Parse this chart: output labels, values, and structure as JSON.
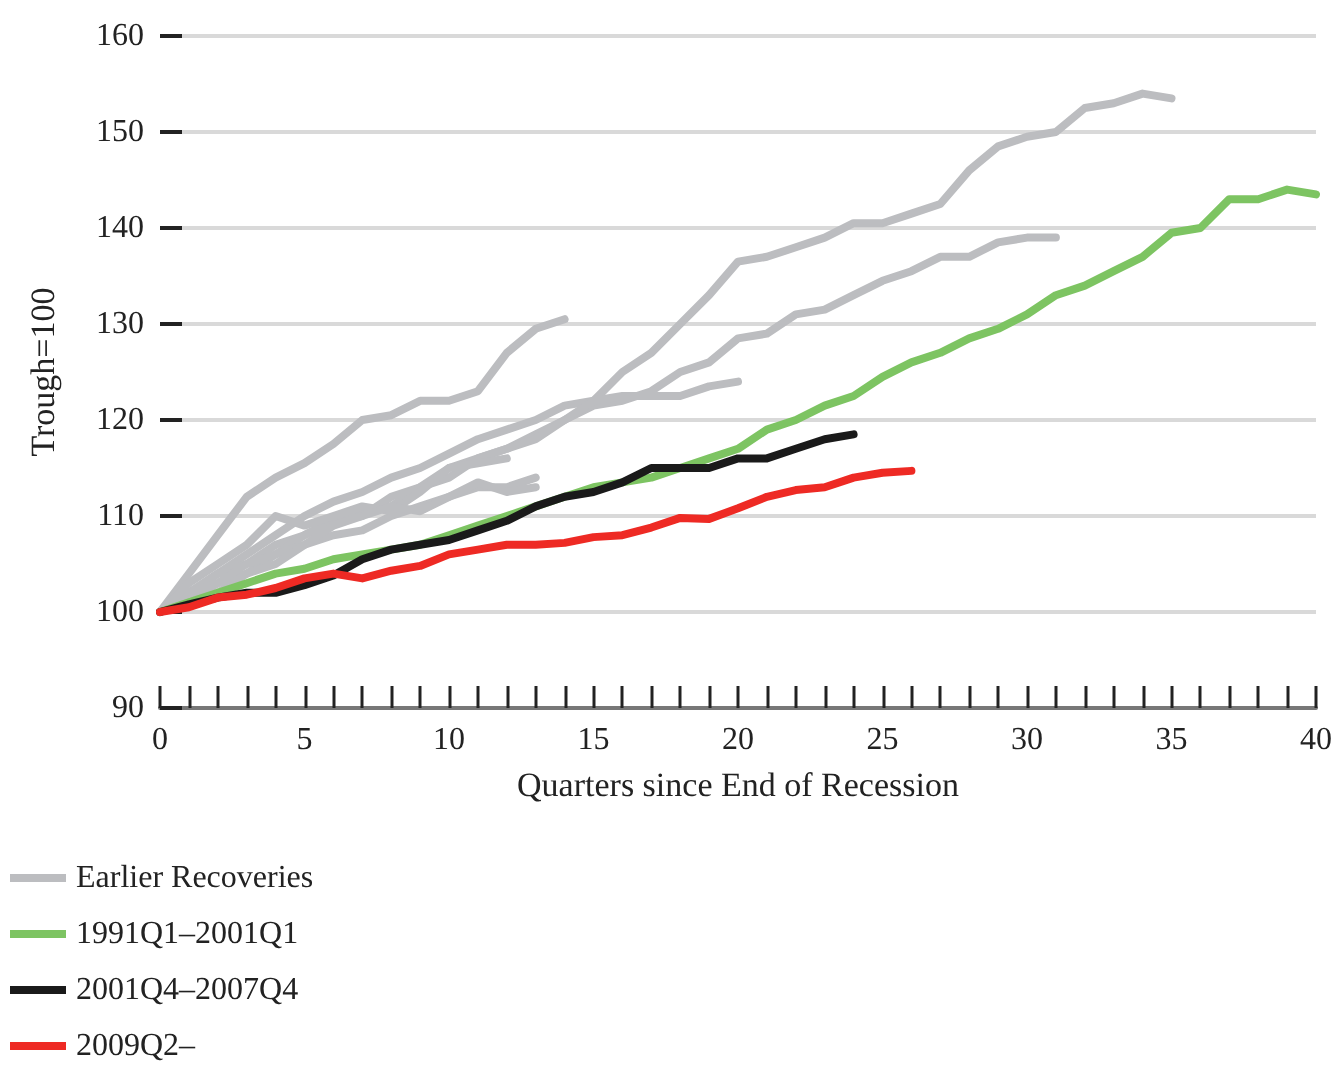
{
  "chart_data": {
    "type": "line",
    "xlabel": "Quarters since End of Recession",
    "ylabel": "Trough=100",
    "xlim": [
      0,
      40
    ],
    "ylim": [
      90,
      160
    ],
    "xticks": [
      0,
      {
        "value": 1,
        "label": null
      },
      {
        "value": 2,
        "label": null
      },
      {
        "value": 3,
        "label": null
      },
      {
        "value": 4,
        "label": null
      },
      5,
      {
        "value": 6,
        "label": null
      },
      {
        "value": 7,
        "label": null
      },
      {
        "value": 8,
        "label": null
      },
      {
        "value": 9,
        "label": null
      },
      10,
      {
        "value": 11,
        "label": null
      },
      {
        "value": 12,
        "label": null
      },
      {
        "value": 13,
        "label": null
      },
      {
        "value": 14,
        "label": null
      },
      15,
      {
        "value": 16,
        "label": null
      },
      {
        "value": 17,
        "label": null
      },
      {
        "value": 18,
        "label": null
      },
      {
        "value": 19,
        "label": null
      },
      20,
      {
        "value": 21,
        "label": null
      },
      {
        "value": 22,
        "label": null
      },
      {
        "value": 23,
        "label": null
      },
      {
        "value": 24,
        "label": null
      },
      25,
      {
        "value": 26,
        "label": null
      },
      {
        "value": 27,
        "label": null
      },
      {
        "value": 28,
        "label": null
      },
      {
        "value": 29,
        "label": null
      },
      30,
      {
        "value": 31,
        "label": null
      },
      {
        "value": 32,
        "label": null
      },
      {
        "value": 33,
        "label": null
      },
      {
        "value": 34,
        "label": null
      },
      35,
      {
        "value": 36,
        "label": null
      },
      {
        "value": 37,
        "label": null
      },
      {
        "value": 38,
        "label": null
      },
      {
        "value": 39,
        "label": null
      },
      40
    ],
    "yticks": [
      90,
      100,
      110,
      120,
      130,
      140,
      150,
      160
    ],
    "grid": "y",
    "legend": "bottom",
    "marker": "none",
    "line_style": "solid",
    "series": [
      {
        "name": "Earlier Recoveries",
        "color": "#bcbdc0",
        "x": [
          0,
          1,
          2,
          3,
          4,
          5,
          6,
          7,
          8,
          9,
          10,
          11,
          12,
          13,
          14,
          15,
          16,
          17,
          18,
          19,
          20,
          21,
          22,
          23,
          24,
          25,
          26,
          27,
          28,
          29,
          30,
          31,
          32,
          33,
          34,
          35
        ],
        "values": [
          100,
          102,
          104,
          106,
          108,
          110,
          111.5,
          112.5,
          114,
          115,
          116.5,
          118,
          119,
          120,
          121.5,
          122,
          125,
          127,
          130,
          133,
          136.5,
          137,
          138,
          139,
          140.5,
          140.5,
          141.5,
          142.5,
          146,
          148.5,
          149.5,
          150,
          152.5,
          153,
          154,
          153.5
        ]
      },
      {
        "color": "#bcbdc0",
        "x": [
          0,
          1,
          2,
          3,
          4,
          5,
          6,
          7,
          8,
          9,
          10,
          11,
          12,
          13,
          14
        ],
        "values": [
          100,
          104,
          108,
          112,
          114,
          115.5,
          117.5,
          120,
          120.5,
          122,
          122,
          123,
          127,
          129.5,
          130.5
        ]
      },
      {
        "color": "#bcbdc0",
        "x": [
          0,
          1,
          2,
          3,
          4,
          5,
          6,
          7,
          8,
          9,
          10,
          11,
          12,
          13,
          14,
          15,
          16,
          17,
          18,
          19,
          20,
          21,
          22,
          23,
          24,
          25,
          26,
          27,
          28,
          29,
          30,
          31
        ],
        "values": [
          100,
          102,
          104,
          105,
          107,
          108,
          109.5,
          110.5,
          111,
          113,
          114,
          116,
          117,
          118.5,
          120,
          121.5,
          122,
          123,
          125,
          126,
          128.5,
          129,
          131,
          131.5,
          133,
          134.5,
          135.5,
          137,
          137,
          138.5,
          139,
          139
        ]
      },
      {
        "color": "#bcbdc0",
        "x": [
          0,
          1,
          2,
          3,
          4,
          5,
          6,
          7,
          8,
          9,
          10,
          11,
          12,
          13,
          14,
          15,
          16,
          17,
          18,
          19,
          20
        ],
        "values": [
          100,
          101,
          103,
          104,
          106,
          108,
          109.5,
          110,
          112,
          113,
          115,
          116,
          117,
          118,
          120,
          122,
          122.5,
          122.5,
          122.5,
          123.5,
          124
        ]
      },
      {
        "color": "#bcbdc0",
        "x": [
          0,
          1,
          2,
          3,
          4,
          5,
          6,
          7,
          8,
          9,
          10,
          11,
          12,
          13
        ],
        "values": [
          100,
          102,
          103,
          105,
          106,
          107,
          108,
          108.5,
          110,
          111,
          112,
          113,
          113,
          114
        ]
      },
      {
        "color": "#bcbdc0",
        "x": [
          0,
          1,
          2,
          3,
          4,
          5,
          6,
          7,
          8,
          9,
          10,
          11,
          12
        ],
        "values": [
          100,
          103,
          105,
          107,
          110,
          109,
          110,
          111,
          110.5,
          112.5,
          115,
          115.5,
          116
        ]
      },
      {
        "color": "#bcbdc0",
        "x": [
          0,
          1,
          2,
          3,
          4,
          5,
          6,
          7,
          8,
          9,
          10,
          11,
          12,
          13
        ],
        "values": [
          100,
          101,
          102,
          104,
          105,
          107,
          109,
          110,
          111,
          110.5,
          112,
          113.5,
          112.5,
          113
        ]
      },
      {
        "name": "1991Q1–2001Q1",
        "color": "#7dc462",
        "x": [
          0,
          1,
          2,
          3,
          4,
          5,
          6,
          7,
          8,
          9,
          10,
          11,
          12,
          13,
          14,
          15,
          16,
          17,
          18,
          19,
          20,
          21,
          22,
          23,
          24,
          25,
          26,
          27,
          28,
          29,
          30,
          31,
          32,
          33,
          34,
          35,
          36,
          37,
          38,
          39,
          40
        ],
        "values": [
          100,
          101,
          102,
          103,
          104,
          104.5,
          105.5,
          106,
          106.5,
          107,
          108,
          109,
          110,
          111,
          112,
          113,
          113.5,
          114,
          115,
          116,
          117,
          119,
          120,
          121.5,
          122.5,
          124.5,
          126,
          127,
          128.5,
          129.5,
          131,
          133,
          134,
          135.5,
          137,
          139.5,
          140,
          143,
          143,
          144,
          143.5
        ]
      },
      {
        "name": "2001Q4–2007Q4",
        "color": "#1a1a1a",
        "x": [
          0,
          1,
          2,
          3,
          4,
          5,
          6,
          7,
          8,
          9,
          10,
          11,
          12,
          13,
          14,
          15,
          16,
          17,
          18,
          19,
          20,
          21,
          22,
          23,
          24
        ],
        "values": [
          100,
          100.8,
          101.5,
          102,
          102,
          102.8,
          103.8,
          105.5,
          106.5,
          107,
          107.5,
          108.5,
          109.5,
          111,
          112,
          112.5,
          113.5,
          115,
          115,
          115,
          116,
          116,
          117,
          118,
          118.5
        ]
      },
      {
        "name": "2009Q2–",
        "color": "#ee2a24",
        "x": [
          0,
          1,
          2,
          3,
          4,
          5,
          6,
          7,
          8,
          9,
          10,
          11,
          12,
          13,
          14,
          15,
          16,
          17,
          18,
          19,
          20,
          21,
          22,
          23,
          24,
          25,
          26
        ],
        "values": [
          100,
          100.5,
          101.5,
          101.8,
          102.5,
          103.5,
          104,
          103.5,
          104.3,
          104.8,
          106,
          106.5,
          107,
          107,
          107.2,
          107.8,
          108,
          108.8,
          109.8,
          109.7,
          110.8,
          112,
          112.7,
          113,
          114,
          114.5,
          114.7
        ]
      }
    ]
  }
}
